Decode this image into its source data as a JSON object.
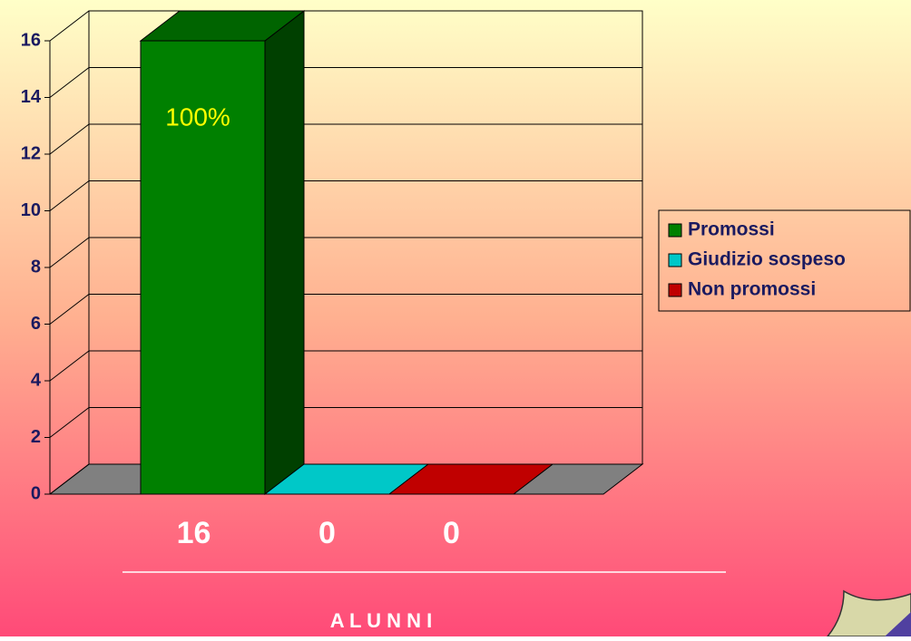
{
  "chart_data": {
    "type": "bar",
    "categories": [
      null
    ],
    "series": [
      {
        "name": "Promossi",
        "color": "#008000",
        "values": [
          16
        ]
      },
      {
        "name": "Giudizio sospeso",
        "color": "#00c8c8",
        "values": [
          0
        ]
      },
      {
        "name": "Non promossi",
        "color": "#c00000",
        "values": [
          0
        ]
      }
    ],
    "annotations": [
      "100%"
    ],
    "xlabel": "A L U N N I",
    "ylim": [
      0,
      16
    ],
    "yticks": [
      0,
      2,
      4,
      6,
      8,
      10,
      12,
      14,
      16
    ],
    "grid": true,
    "legend": "right"
  }
}
